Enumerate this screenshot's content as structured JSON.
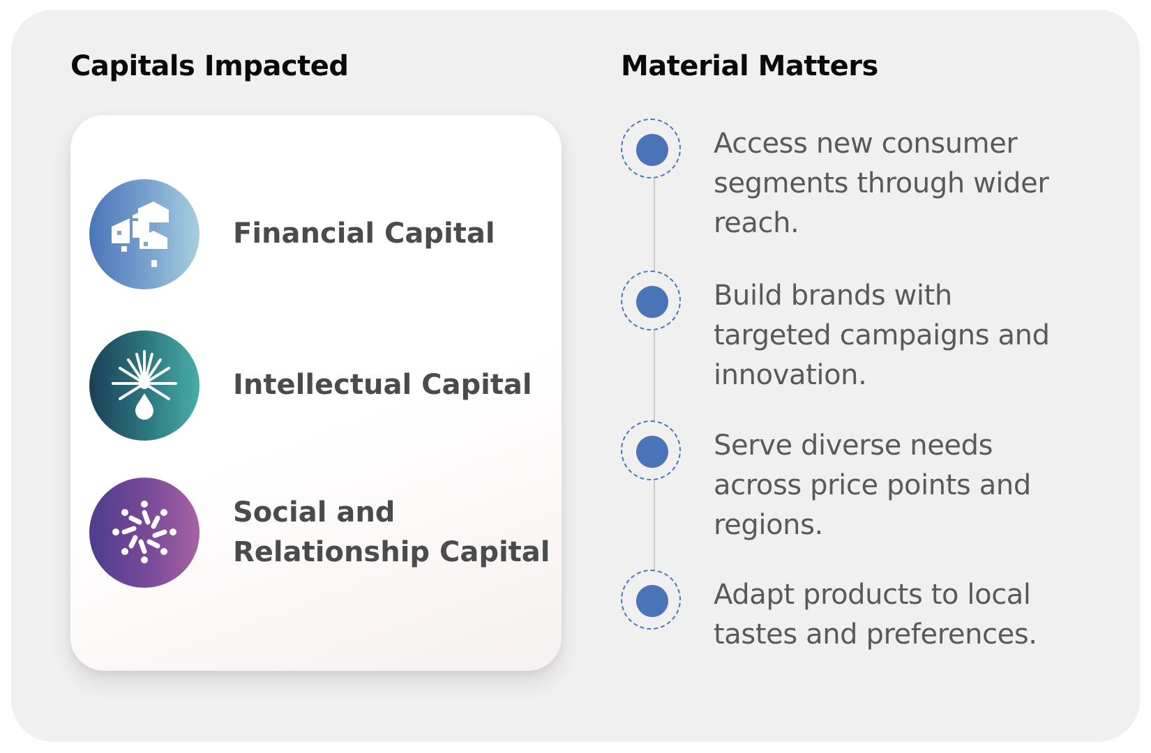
{
  "capitals": {
    "heading": "Capitals Impacted",
    "items": [
      {
        "label": "Financial Capital",
        "icon": "buildings-icon",
        "colors": [
          "#4a76b8",
          "#a6d0df"
        ]
      },
      {
        "label": "Intellectual Capital",
        "icon": "lightburst-drop-icon",
        "colors": [
          "#1b3f58",
          "#49ada6"
        ]
      },
      {
        "label": "Social and Relationship Capital",
        "icon": "people-network-icon",
        "colors": [
          "#4f3c8e",
          "#a663a3"
        ]
      }
    ]
  },
  "material_matters": {
    "heading": "Material Matters",
    "accent_color": "#4a74b8",
    "items": [
      {
        "text": "Access new consumer segments through wider reach."
      },
      {
        "text": "Build brands with targeted campaigns and innovation."
      },
      {
        "text": "Serve diverse needs across price points and regions."
      },
      {
        "text": "Adapt products to local tastes and preferences."
      }
    ]
  }
}
